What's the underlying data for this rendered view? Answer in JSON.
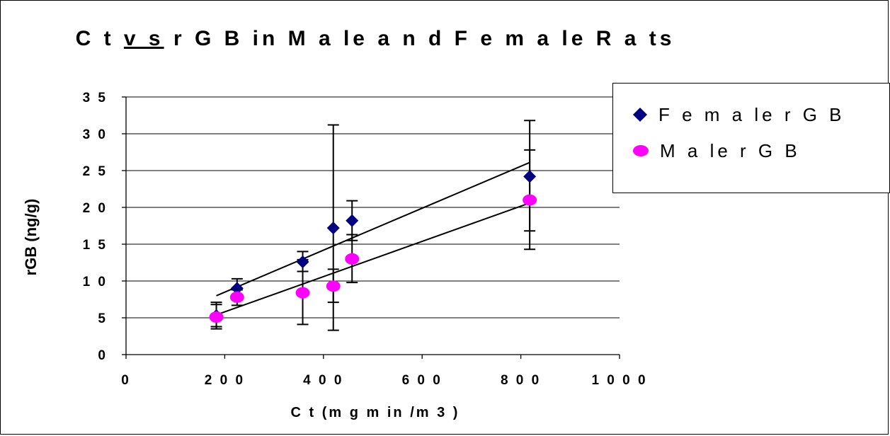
{
  "chart_data": {
    "type": "scatter",
    "title": {
      "part1": "C t ",
      "underlined": "v s",
      "part2": " r G B  in  M a le  a n d  F e m a le  R a ts"
    },
    "xlabel": "C t  (m g  m in /m 3 )",
    "ylabel": "rGB (ng/g)",
    "xlim": [
      0,
      1000
    ],
    "ylim": [
      0,
      35
    ],
    "x_ticks": [
      0,
      200,
      400,
      600,
      800,
      1000
    ],
    "x_tick_labels": [
      "0",
      "2 0 0",
      "4 0 0",
      "6 0 0",
      "8 0 0",
      "1 0 0 0"
    ],
    "y_ticks": [
      0,
      5,
      10,
      15,
      20,
      25,
      30,
      35
    ],
    "y_tick_labels": [
      "0",
      "5",
      "1 0",
      "1 5",
      "2 0",
      "2 5",
      "3 0",
      "3 5"
    ],
    "grid": "horizontal",
    "legend_position": "right",
    "series": [
      {
        "name": "F e m a le  r G B",
        "color": "#000080",
        "marker": "diamond",
        "x": [
          183,
          225,
          358,
          420,
          458,
          818
        ],
        "y": [
          5.3,
          9.0,
          12.6,
          17.2,
          18.2,
          24.2
        ],
        "err_low": [
          3.5,
          7.7,
          11.3,
          3.3,
          15.5,
          16.8
        ],
        "err_high": [
          7.1,
          10.3,
          14.0,
          31.2,
          20.9,
          31.8
        ],
        "trendline": [
          [
            183,
            8.0
          ],
          [
            818,
            26.1
          ]
        ]
      },
      {
        "name": "M a le  r G B",
        "color": "#ff00ff",
        "marker": "circle",
        "x": [
          183,
          225,
          358,
          420,
          458,
          818
        ],
        "y": [
          5.1,
          7.8,
          8.4,
          9.3,
          13.0,
          21.0
        ],
        "err_low": [
          3.8,
          6.7,
          4.1,
          7.1,
          9.8,
          14.3
        ],
        "err_high": [
          6.8,
          8.8,
          12.9,
          11.6,
          16.3,
          27.8
        ],
        "trendline": [
          [
            183,
            5.4
          ],
          [
            818,
            20.6
          ]
        ]
      }
    ]
  }
}
